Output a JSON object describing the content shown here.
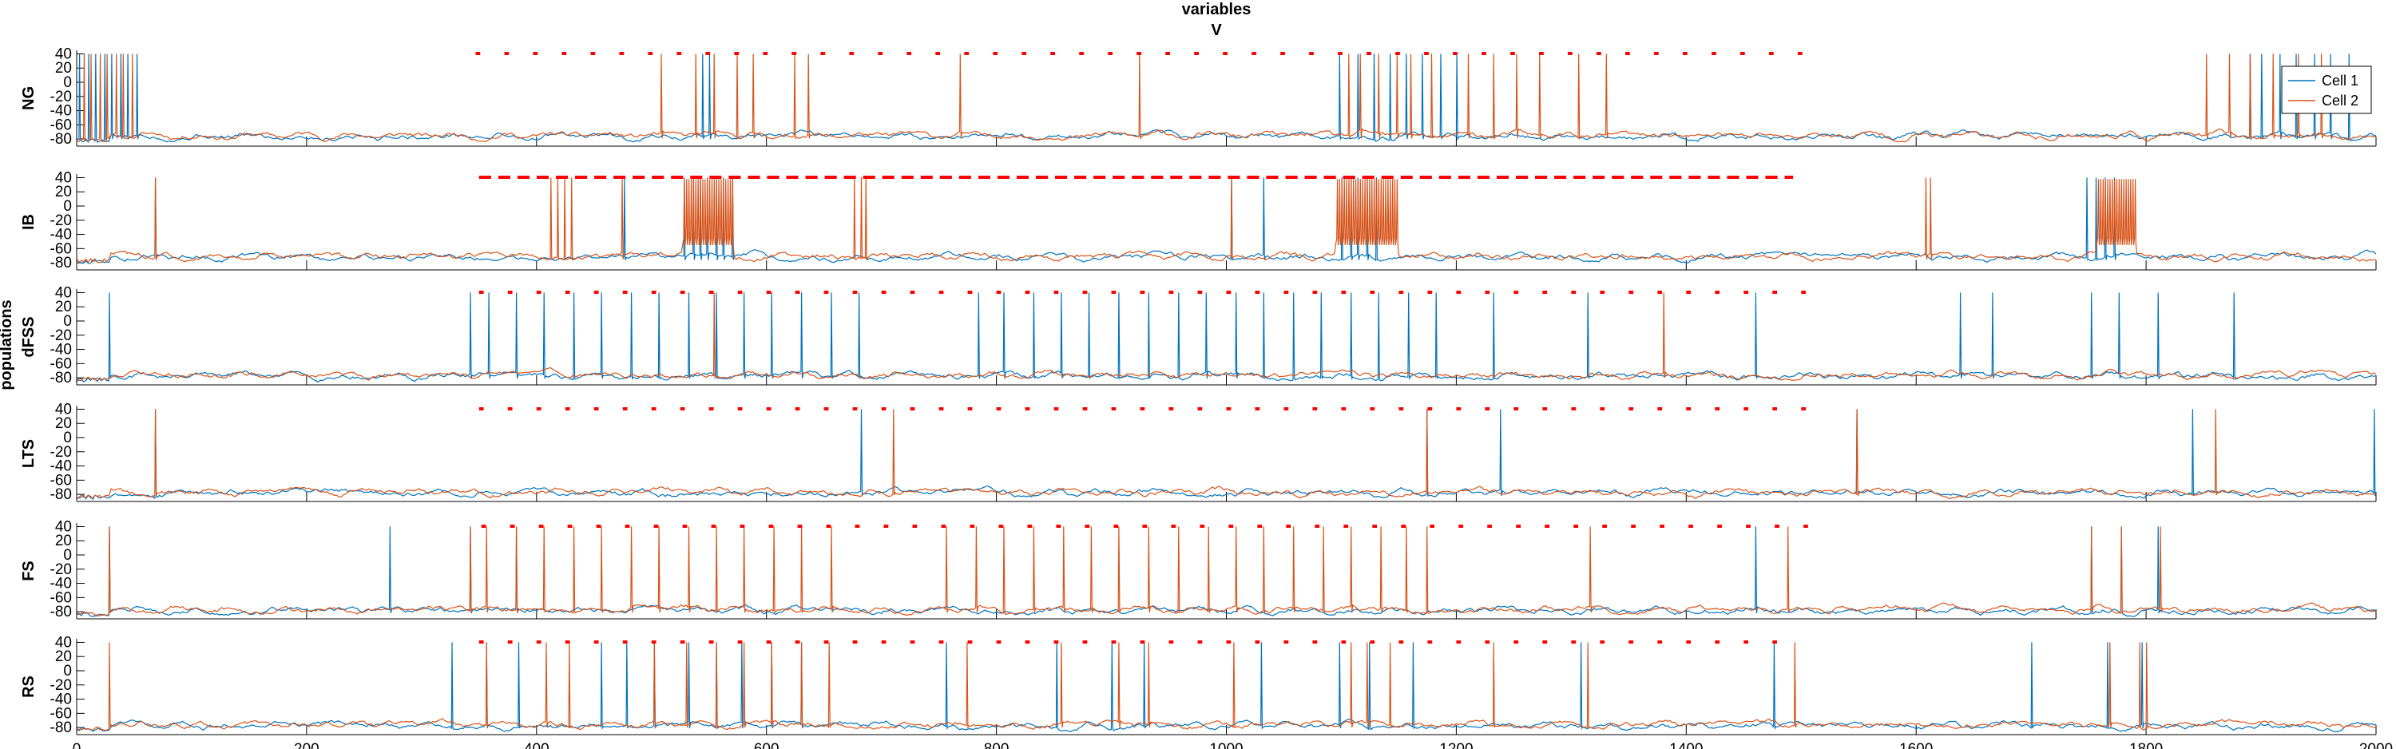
{
  "figure": {
    "title_line1": "variables",
    "title_line2": "V",
    "ylabel": "populations"
  },
  "chart_data": {
    "type": "line",
    "title": "variables V",
    "xlim": [
      0,
      2000
    ],
    "x_ticks": [
      0,
      200,
      400,
      600,
      800,
      1000,
      1200,
      1400,
      1600,
      1800,
      2000
    ],
    "ylim": [
      -90,
      45
    ],
    "y_ticks": [
      40,
      20,
      0,
      -20,
      -40,
      -60,
      -80
    ],
    "legend": {
      "placement": "top-right",
      "entries": [
        "Cell 1",
        "Cell 2"
      ]
    },
    "colors": {
      "Cell 1": "#0072bd",
      "Cell 2": "#d95319",
      "pulse": "#ff0000",
      "axis": "#000000"
    },
    "panels": [
      {
        "population": "NG",
        "baseline": -76,
        "pulse_range": [
          347,
          1508
        ],
        "pulse_style": "dots",
        "cell1_spikes": [
          2,
          9,
          16,
          23,
          30,
          37,
          44,
          51,
          543,
          550,
          1097,
          1113,
          1127,
          1141,
          1155,
          1170,
          1185,
          1200,
          1890,
          1900,
          1915,
          1930,
          1945,
          1960,
          1975
        ],
        "cell2_spikes": [
          5,
          12,
          19,
          26,
          33,
          40,
          47,
          507,
          537,
          553,
          573,
          587,
          623,
          636,
          767,
          923,
          1105,
          1116,
          1132,
          1147,
          1160,
          1177,
          1210,
          1232,
          1251,
          1272,
          1305,
          1329,
          1851,
          1872,
          1890,
          1910,
          1931,
          1952
        ],
        "cell2_bursts": []
      },
      {
        "population": "IB",
        "baseline": -72,
        "pulse_range": [
          350,
          1493
        ],
        "pulse_style": "dashes",
        "cell1_spikes": [
          67,
          475,
          528,
          535,
          542,
          548,
          555,
          562,
          569,
          1003,
          1032,
          1100,
          1107,
          1114,
          1121,
          1130,
          1748,
          1756,
          1764,
          1772
        ],
        "cell2_spikes": [
          68,
          411,
          417,
          423,
          429,
          473,
          676,
          681,
          686,
          1004,
          1608,
          1612
        ],
        "cell2_bursts": [
          [
            528,
            570
          ],
          [
            1095,
            1148
          ],
          [
            1758,
            1790
          ]
        ]
      },
      {
        "population": "dFSS",
        "baseline": -77,
        "pulse_range": [
          350,
          1510
        ],
        "pulse_style": "dots",
        "cell1_spikes": [
          27,
          341,
          357,
          381,
          406,
          432,
          456,
          481,
          506,
          531,
          555,
          579,
          604,
          630,
          655,
          680,
          783,
          806,
          831,
          856,
          880,
          906,
          932,
          957,
          982,
          1008,
          1032,
          1058,
          1082,
          1107,
          1131,
          1157,
          1181,
          1232,
          1314,
          1460,
          1637,
          1665,
          1751,
          1776,
          1810,
          1875
        ],
        "cell2_spikes": [
          553,
          1379
        ],
        "cell2_bursts": []
      },
      {
        "population": "LTS",
        "baseline": -78,
        "pulse_range": [
          350,
          1503
        ],
        "pulse_style": "dots",
        "cell1_spikes": [
          67,
          681,
          1174,
          1237,
          1547,
          1840,
          1998
        ],
        "cell2_spikes": [
          67,
          710,
          1173,
          1548,
          1860
        ],
        "cell2_bursts": []
      },
      {
        "population": "FS",
        "baseline": -78,
        "pulse_range": [
          352,
          1505
        ],
        "pulse_style": "dots",
        "cell1_spikes": [
          27,
          271,
          342,
          382,
          1460,
          1751,
          1777,
          1810
        ],
        "cell2_spikes": [
          27,
          342,
          356,
          382,
          406,
          432,
          456,
          481,
          506,
          531,
          555,
          580,
          605,
          630,
          656,
          756,
          781,
          806,
          831,
          857,
          881,
          906,
          932,
          957,
          983,
          1008,
          1032,
          1058,
          1083,
          1108,
          1133,
          1156,
          1174,
          1315,
          1487,
          1752,
          1778,
          1811
        ],
        "cell2_bursts": []
      },
      {
        "population": "RS",
        "baseline": -77,
        "pulse_range": [
          350,
          1500
        ],
        "pulse_style": "dots",
        "cell1_spikes": [
          326,
          355,
          384,
          456,
          477,
          502,
          531,
          555,
          578,
          603,
          630,
          756,
          852,
          899,
          928,
          1030,
          1098,
          1124,
          1162,
          1307,
          1476,
          1700,
          1765,
          1796
        ],
        "cell2_spikes": [
          27,
          355,
          408,
          427,
          502,
          530,
          555,
          580,
          604,
          629,
          653,
          773,
          856,
          906,
          931,
          1006,
          1107,
          1121,
          1142,
          1232,
          1313,
          1493,
          1767,
          1793,
          1799
        ],
        "cell2_bursts": []
      }
    ]
  }
}
